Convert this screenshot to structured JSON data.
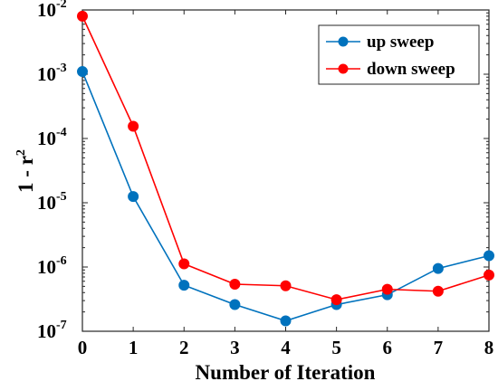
{
  "chart_data": {
    "type": "line",
    "x": [
      0,
      1,
      2,
      3,
      4,
      5,
      6,
      7,
      8
    ],
    "xlim": [
      0,
      8
    ],
    "ylim": [
      1e-07,
      0.01
    ],
    "yscale": "log",
    "xlabel": "Number of Iteration",
    "ylabel": "1 - r",
    "ylabel_sup": "2",
    "xticks": [
      "0",
      "1",
      "2",
      "3",
      "4",
      "5",
      "6",
      "7",
      "8"
    ],
    "yticks": [
      {
        "base": "10",
        "exp": "-7",
        "value": 1e-07
      },
      {
        "base": "10",
        "exp": "-6",
        "value": 1e-06
      },
      {
        "base": "10",
        "exp": "-5",
        "value": 1e-05
      },
      {
        "base": "10",
        "exp": "-4",
        "value": 0.0001
      },
      {
        "base": "10",
        "exp": "-3",
        "value": 0.001
      },
      {
        "base": "10",
        "exp": "-2",
        "value": 0.01
      }
    ],
    "grid": false,
    "legend_position": "top-right",
    "series": [
      {
        "name": "up sweep",
        "color": "#0072BD",
        "values": [
          0.0011,
          1.25e-05,
          5.2e-07,
          2.6e-07,
          1.45e-07,
          2.6e-07,
          3.7e-07,
          9.5e-07,
          1.5e-06
        ]
      },
      {
        "name": "down sweep",
        "color": "#FF0000",
        "values": [
          0.008,
          0.000155,
          1.12e-06,
          5.4e-07,
          5.1e-07,
          3.1e-07,
          4.5e-07,
          4.2e-07,
          7.5e-07
        ]
      }
    ]
  }
}
